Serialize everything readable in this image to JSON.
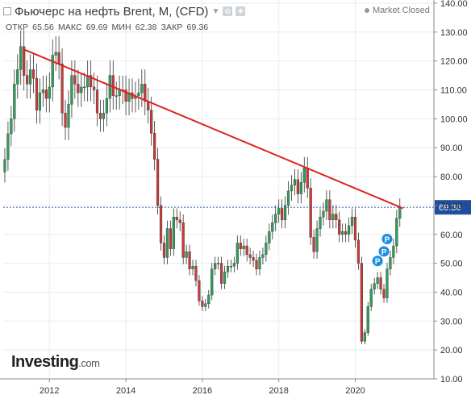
{
  "header": {
    "title": "Фьючерс на нефть Brent, M, (CFD)",
    "market_status": "Market Closed"
  },
  "ohlc": {
    "open_label": "ОТКР",
    "open": "65.56",
    "high_label": "МАКС",
    "high": "69.69",
    "low_label": "МИН",
    "low": "62.38",
    "close_label": "ЗАКР",
    "close": "69.36"
  },
  "logo": {
    "main": "Investing",
    "suffix": ".com"
  },
  "colors": {
    "up": "#2e9e58",
    "down": "#c93a3a",
    "trendline": "#e02020",
    "marker": "#1a8fe0",
    "price_line": "#1f4e9e"
  },
  "chart_data": {
    "type": "candlestick",
    "xlabel": "",
    "ylabel": "",
    "x_ticks": [
      "2012",
      "2014",
      "2016",
      "2018",
      "2020"
    ],
    "y_ticks": [
      "140.00",
      "130.00",
      "120.00",
      "110.00",
      "100.00",
      "90.00",
      "80.00",
      "70.00",
      "60.00",
      "50.00",
      "40.00",
      "30.00",
      "20.00",
      "10.00"
    ],
    "ylim": [
      10,
      140
    ],
    "x_range": [
      "2010-11",
      "2021-06"
    ],
    "last_price": "69.36",
    "trendline": [
      {
        "date": "2011-05",
        "value": 124
      },
      {
        "date": "2021-04",
        "value": 69
      }
    ],
    "markers": [
      {
        "label": "P",
        "date": "2020-08",
        "value": 50.8
      },
      {
        "label": "P",
        "date": "2020-10",
        "value": 54.1
      },
      {
        "label": "P",
        "date": "2020-11",
        "value": 58.4
      }
    ],
    "closes": [
      {
        "date": "2010-11",
        "value": 85.9
      },
      {
        "date": "2010-12",
        "value": 94.8
      },
      {
        "date": "2011-01",
        "value": 100
      },
      {
        "date": "2011-02",
        "value": 112
      },
      {
        "date": "2011-03",
        "value": 117
      },
      {
        "date": "2011-04",
        "value": 125
      },
      {
        "date": "2011-05",
        "value": 115
      },
      {
        "date": "2011-06",
        "value": 112
      },
      {
        "date": "2011-07",
        "value": 117
      },
      {
        "date": "2011-08",
        "value": 114
      },
      {
        "date": "2011-09",
        "value": 103
      },
      {
        "date": "2011-10",
        "value": 109
      },
      {
        "date": "2011-11",
        "value": 110
      },
      {
        "date": "2011-12",
        "value": 107
      },
      {
        "date": "2012-01",
        "value": 111
      },
      {
        "date": "2012-02",
        "value": 122
      },
      {
        "date": "2012-03",
        "value": 123
      },
      {
        "date": "2012-04",
        "value": 119
      },
      {
        "date": "2012-05",
        "value": 102
      },
      {
        "date": "2012-06",
        "value": 97
      },
      {
        "date": "2012-07",
        "value": 105
      },
      {
        "date": "2012-08",
        "value": 115
      },
      {
        "date": "2012-09",
        "value": 112
      },
      {
        "date": "2012-10",
        "value": 109
      },
      {
        "date": "2012-11",
        "value": 111
      },
      {
        "date": "2012-12",
        "value": 111
      },
      {
        "date": "2013-01",
        "value": 115
      },
      {
        "date": "2013-02",
        "value": 111
      },
      {
        "date": "2013-03",
        "value": 110
      },
      {
        "date": "2013-04",
        "value": 102
      },
      {
        "date": "2013-05",
        "value": 100
      },
      {
        "date": "2013-06",
        "value": 102
      },
      {
        "date": "2013-07",
        "value": 107
      },
      {
        "date": "2013-08",
        "value": 115
      },
      {
        "date": "2013-09",
        "value": 108
      },
      {
        "date": "2013-10",
        "value": 108
      },
      {
        "date": "2013-11",
        "value": 110
      },
      {
        "date": "2013-12",
        "value": 110
      },
      {
        "date": "2014-01",
        "value": 106
      },
      {
        "date": "2014-02",
        "value": 109
      },
      {
        "date": "2014-03",
        "value": 107
      },
      {
        "date": "2014-04",
        "value": 108
      },
      {
        "date": "2014-05",
        "value": 109
      },
      {
        "date": "2014-06",
        "value": 112
      },
      {
        "date": "2014-07",
        "value": 106
      },
      {
        "date": "2014-08",
        "value": 103
      },
      {
        "date": "2014-09",
        "value": 95
      },
      {
        "date": "2014-10",
        "value": 86
      },
      {
        "date": "2014-11",
        "value": 70
      },
      {
        "date": "2014-12",
        "value": 57
      },
      {
        "date": "2015-01",
        "value": 52
      },
      {
        "date": "2015-02",
        "value": 62
      },
      {
        "date": "2015-03",
        "value": 55
      },
      {
        "date": "2015-04",
        "value": 66
      },
      {
        "date": "2015-05",
        "value": 65
      },
      {
        "date": "2015-06",
        "value": 64
      },
      {
        "date": "2015-07",
        "value": 52
      },
      {
        "date": "2015-08",
        "value": 54
      },
      {
        "date": "2015-09",
        "value": 48
      },
      {
        "date": "2015-10",
        "value": 49
      },
      {
        "date": "2015-11",
        "value": 44
      },
      {
        "date": "2015-12",
        "value": 37
      },
      {
        "date": "2016-01",
        "value": 35
      },
      {
        "date": "2016-02",
        "value": 36
      },
      {
        "date": "2016-03",
        "value": 39
      },
      {
        "date": "2016-04",
        "value": 48
      },
      {
        "date": "2016-05",
        "value": 50
      },
      {
        "date": "2016-06",
        "value": 50
      },
      {
        "date": "2016-07",
        "value": 43
      },
      {
        "date": "2016-08",
        "value": 47
      },
      {
        "date": "2016-09",
        "value": 49
      },
      {
        "date": "2016-10",
        "value": 49
      },
      {
        "date": "2016-11",
        "value": 50
      },
      {
        "date": "2016-12",
        "value": 57
      },
      {
        "date": "2017-01",
        "value": 55
      },
      {
        "date": "2017-02",
        "value": 56
      },
      {
        "date": "2017-03",
        "value": 53
      },
      {
        "date": "2017-04",
        "value": 52
      },
      {
        "date": "2017-05",
        "value": 51
      },
      {
        "date": "2017-06",
        "value": 48
      },
      {
        "date": "2017-07",
        "value": 52
      },
      {
        "date": "2017-08",
        "value": 53
      },
      {
        "date": "2017-09",
        "value": 57
      },
      {
        "date": "2017-10",
        "value": 61
      },
      {
        "date": "2017-11",
        "value": 64
      },
      {
        "date": "2017-12",
        "value": 67
      },
      {
        "date": "2018-01",
        "value": 69
      },
      {
        "date": "2018-02",
        "value": 65
      },
      {
        "date": "2018-03",
        "value": 70
      },
      {
        "date": "2018-04",
        "value": 75
      },
      {
        "date": "2018-05",
        "value": 77
      },
      {
        "date": "2018-06",
        "value": 79
      },
      {
        "date": "2018-07",
        "value": 74
      },
      {
        "date": "2018-08",
        "value": 78
      },
      {
        "date": "2018-09",
        "value": 83
      },
      {
        "date": "2018-10",
        "value": 76
      },
      {
        "date": "2018-11",
        "value": 59
      },
      {
        "date": "2018-12",
        "value": 54
      },
      {
        "date": "2019-01",
        "value": 62
      },
      {
        "date": "2019-02",
        "value": 66
      },
      {
        "date": "2019-03",
        "value": 68
      },
      {
        "date": "2019-04",
        "value": 72
      },
      {
        "date": "2019-05",
        "value": 65
      },
      {
        "date": "2019-06",
        "value": 67
      },
      {
        "date": "2019-07",
        "value": 65
      },
      {
        "date": "2019-08",
        "value": 60
      },
      {
        "date": "2019-09",
        "value": 61
      },
      {
        "date": "2019-10",
        "value": 60
      },
      {
        "date": "2019-11",
        "value": 63
      },
      {
        "date": "2019-12",
        "value": 66
      },
      {
        "date": "2020-01",
        "value": 58
      },
      {
        "date": "2020-02",
        "value": 50
      },
      {
        "date": "2020-03",
        "value": 23
      },
      {
        "date": "2020-04",
        "value": 26
      },
      {
        "date": "2020-05",
        "value": 35
      },
      {
        "date": "2020-06",
        "value": 41
      },
      {
        "date": "2020-07",
        "value": 43
      },
      {
        "date": "2020-08",
        "value": 45
      },
      {
        "date": "2020-09",
        "value": 41
      },
      {
        "date": "2020-10",
        "value": 38
      },
      {
        "date": "2020-11",
        "value": 48
      },
      {
        "date": "2020-12",
        "value": 52
      },
      {
        "date": "2021-01",
        "value": 56
      },
      {
        "date": "2021-02",
        "value": 65.56
      },
      {
        "date": "2021-03",
        "value": 69.36
      }
    ]
  }
}
